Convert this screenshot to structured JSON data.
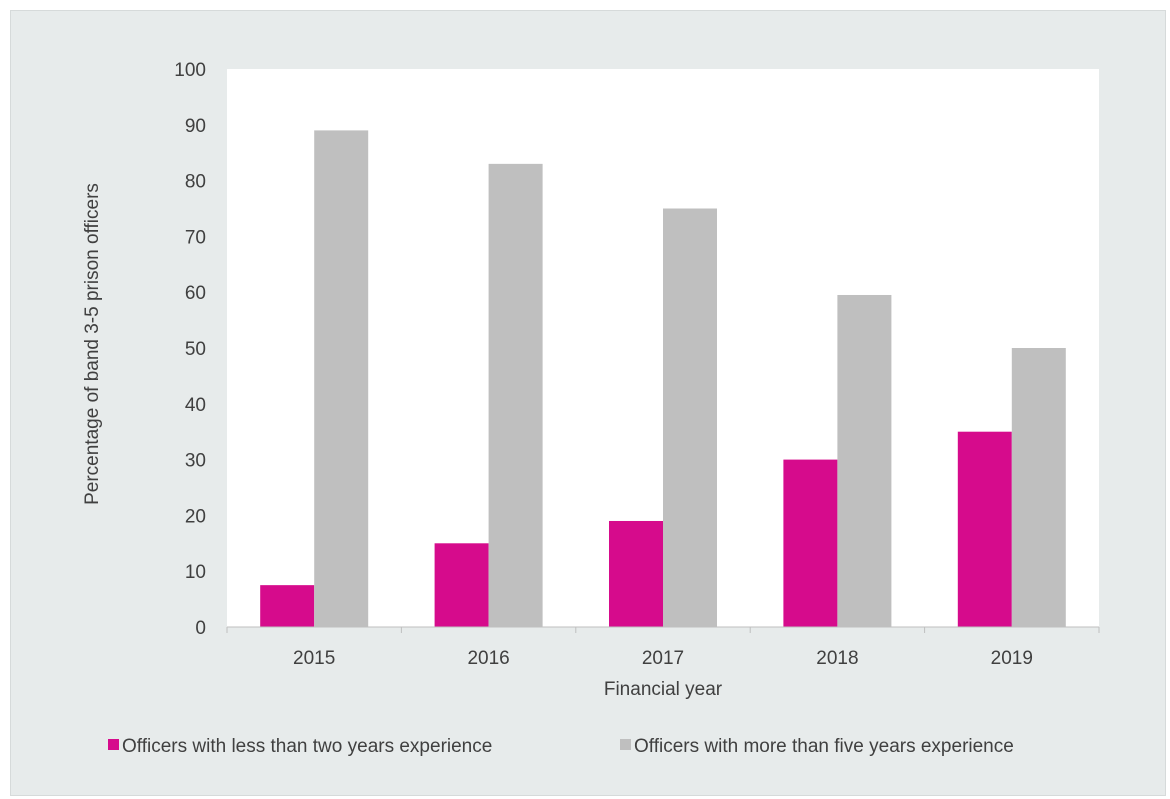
{
  "chart_data": {
    "type": "bar",
    "title": "",
    "xlabel": "Financial year",
    "ylabel": "Percentage of band 3-5 prison officers",
    "categories": [
      "2015",
      "2016",
      "2017",
      "2018",
      "2019"
    ],
    "ylim": [
      0,
      100
    ],
    "yticks": [
      "0",
      "10",
      "20",
      "30",
      "40",
      "50",
      "60",
      "70",
      "80",
      "90",
      "100"
    ],
    "grid": false,
    "legend_position": "bottom",
    "series": [
      {
        "name": "Officers with less than two years experience",
        "color": "#d60b8c",
        "values": [
          7.5,
          15,
          19,
          30,
          35
        ]
      },
      {
        "name": "Officers with more than five years experience",
        "color": "#bfbfbf",
        "values": [
          89,
          83,
          75,
          59.5,
          50
        ]
      }
    ],
    "colors": {
      "plot_background": "#ffffff",
      "panel_background": "#e7ebeb",
      "text": "#404040",
      "axis": "#bfbfbf"
    }
  }
}
